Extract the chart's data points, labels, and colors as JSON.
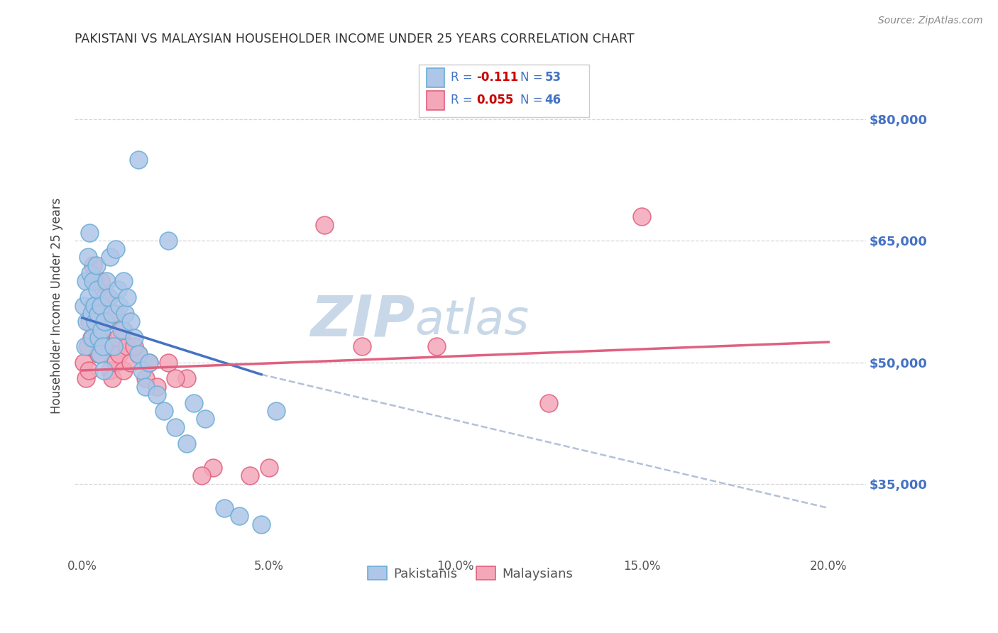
{
  "title": "PAKISTANI VS MALAYSIAN HOUSEHOLDER INCOME UNDER 25 YEARS CORRELATION CHART",
  "source": "Source: ZipAtlas.com",
  "ylabel": "Householder Income Under 25 years",
  "xlabel_ticks": [
    "0.0%",
    "5.0%",
    "10.0%",
    "15.0%",
    "20.0%"
  ],
  "xlabel_vals": [
    0.0,
    5.0,
    10.0,
    15.0,
    20.0
  ],
  "ylim": [
    26000,
    88000
  ],
  "xlim": [
    -0.2,
    21.0
  ],
  "yticks": [
    35000,
    50000,
    65000,
    80000
  ],
  "ytick_labels": [
    "$35,000",
    "$50,000",
    "$65,000",
    "$80,000"
  ],
  "bg_color": "#ffffff",
  "grid_color": "#cccccc",
  "pakistani_color": "#aec6e8",
  "malaysian_color": "#f4a7b9",
  "pakistani_edge": "#6aaed6",
  "malaysian_edge": "#e06080",
  "blue_line_color": "#4472c4",
  "pink_line_color": "#e06080",
  "dashed_line_color": "#aabbd4",
  "watermark_color": "#c8d8e8",
  "pakistani_x": [
    0.05,
    0.08,
    0.1,
    0.12,
    0.15,
    0.18,
    0.2,
    0.22,
    0.25,
    0.28,
    0.3,
    0.32,
    0.35,
    0.38,
    0.4,
    0.42,
    0.45,
    0.48,
    0.5,
    0.52,
    0.55,
    0.58,
    0.6,
    0.65,
    0.7,
    0.75,
    0.8,
    0.85,
    0.9,
    0.95,
    1.0,
    1.05,
    1.1,
    1.15,
    1.2,
    1.3,
    1.4,
    1.5,
    1.6,
    1.7,
    1.8,
    2.0,
    2.2,
    2.5,
    2.8,
    3.0,
    3.3,
    3.8,
    4.2,
    4.8,
    5.2,
    1.5,
    2.3
  ],
  "pakistani_y": [
    57000,
    52000,
    60000,
    55000,
    63000,
    58000,
    66000,
    61000,
    56000,
    53000,
    60000,
    57000,
    55000,
    62000,
    59000,
    56000,
    53000,
    51000,
    57000,
    54000,
    52000,
    49000,
    55000,
    60000,
    58000,
    63000,
    56000,
    52000,
    64000,
    59000,
    57000,
    54000,
    60000,
    56000,
    58000,
    55000,
    53000,
    51000,
    49000,
    47000,
    50000,
    46000,
    44000,
    42000,
    40000,
    45000,
    43000,
    32000,
    31000,
    30000,
    44000,
    75000,
    65000
  ],
  "malaysian_x": [
    0.05,
    0.1,
    0.15,
    0.18,
    0.2,
    0.25,
    0.3,
    0.35,
    0.4,
    0.45,
    0.5,
    0.55,
    0.6,
    0.65,
    0.7,
    0.75,
    0.8,
    0.85,
    0.9,
    0.95,
    1.0,
    1.1,
    1.2,
    1.3,
    1.5,
    1.7,
    2.0,
    2.3,
    2.8,
    3.5,
    5.0,
    7.5,
    9.5,
    12.5,
    15.0,
    0.3,
    0.5,
    0.7,
    0.9,
    1.1,
    1.4,
    1.8,
    2.5,
    3.2,
    4.5,
    6.5
  ],
  "malaysian_y": [
    50000,
    48000,
    52000,
    49000,
    55000,
    53000,
    57000,
    60000,
    54000,
    51000,
    56000,
    53000,
    58000,
    55000,
    52000,
    49000,
    48000,
    52000,
    50000,
    53000,
    51000,
    49000,
    52000,
    50000,
    51000,
    48000,
    47000,
    50000,
    48000,
    37000,
    37000,
    52000,
    52000,
    45000,
    68000,
    62000,
    60000,
    58000,
    56000,
    54000,
    52000,
    50000,
    48000,
    36000,
    36000,
    67000
  ],
  "pk_trend_x0": 0.0,
  "pk_trend_x1": 4.8,
  "pk_trend_y0": 55500,
  "pk_trend_y1": 48500,
  "my_trend_x0": 0.0,
  "my_trend_x1": 20.0,
  "my_trend_y0": 49000,
  "my_trend_y1": 52500,
  "dash_x0": 4.8,
  "dash_x1": 20.0,
  "dash_y0": 48500,
  "dash_y1": 32000
}
